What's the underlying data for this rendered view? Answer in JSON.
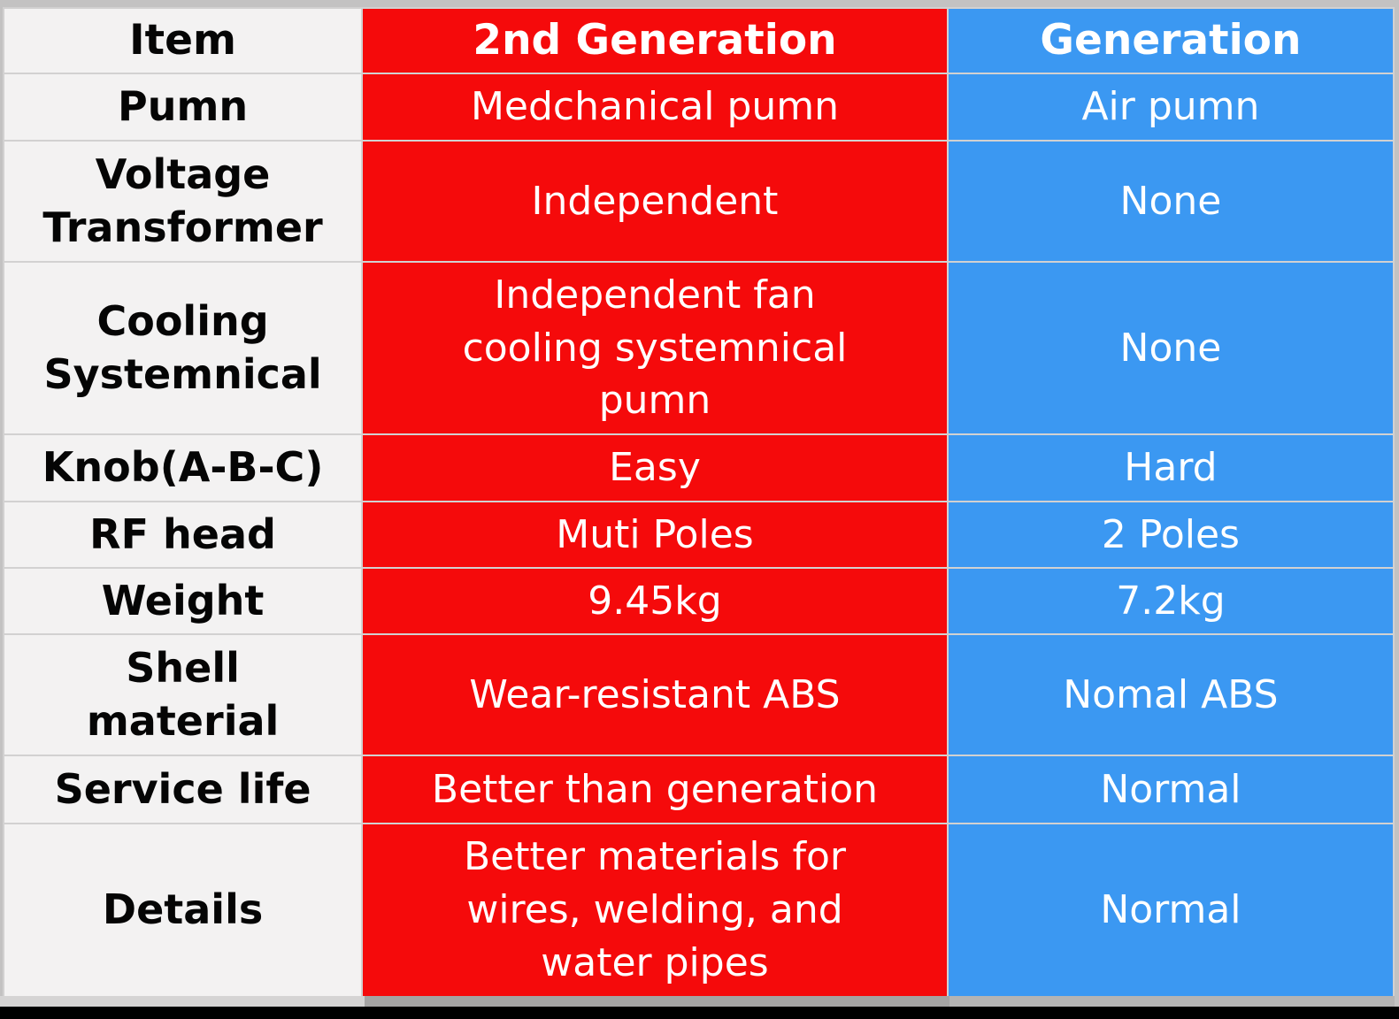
{
  "colors": {
    "red": "#f50a0b",
    "blue": "#3b98f2",
    "label_bg": "#f3f2f2",
    "label_text": "#050505",
    "value_text": "#ffffff",
    "grid": "#d2d1d1",
    "page_bg": "#c3c2c2",
    "letterbox": "#000000",
    "shadow_left": "#d5d4d4",
    "shadow_mid": "#a5a4a4",
    "shadow_right": "#b5b4b4"
  },
  "table": {
    "header": {
      "item": "Item",
      "gen2": "2nd Generation",
      "gen1": "Generation"
    },
    "rows": [
      {
        "item": "Pumn",
        "gen2": "Medchanical pumn",
        "gen1": "Air pumn"
      },
      {
        "item": "Voltage\nTransformer",
        "gen2": "Independent",
        "gen1": "None"
      },
      {
        "item": "Cooling\nSystemnical",
        "gen2": "Independent fan\ncooling systemnical\npumn",
        "gen1": "None"
      },
      {
        "item": "Knob(A-B-C)",
        "gen2": "Easy",
        "gen1": "Hard"
      },
      {
        "item": "RF head",
        "gen2": "Muti Poles",
        "gen1": "2 Poles"
      },
      {
        "item": "Weight",
        "gen2": "9.45kg",
        "gen1": "7.2kg"
      },
      {
        "item": "Shell\nmaterial",
        "gen2": "Wear-resistant ABS",
        "gen1": "Nomal ABS"
      },
      {
        "item": "Service life",
        "gen2": "Better than generation",
        "gen1": "Normal"
      },
      {
        "item": "Details",
        "gen2": "Better materials for\nwires, welding, and\nwater pipes",
        "gen1": "Normal"
      }
    ]
  },
  "chart_data": {
    "type": "table",
    "title": "",
    "columns": [
      "Item",
      "2nd Generation",
      "Generation"
    ],
    "rows": [
      [
        "Pumn",
        "Medchanical pumn",
        "Air pumn"
      ],
      [
        "Voltage Transformer",
        "Independent",
        "None"
      ],
      [
        "Cooling Systemnical",
        "Independent fan cooling systemnical pumn",
        "None"
      ],
      [
        "Knob(A-B-C)",
        "Easy",
        "Hard"
      ],
      [
        "RF head",
        "Muti Poles",
        "2 Poles"
      ],
      [
        "Weight",
        "9.45kg",
        "7.2kg"
      ],
      [
        "Shell material",
        "Wear-resistant ABS",
        "Nomal ABS"
      ],
      [
        "Service life",
        "Better than generation",
        "Normal"
      ],
      [
        "Details",
        "Better materials for wires, welding, and water pipes",
        "Normal"
      ]
    ],
    "layout_hints": {
      "column_accent_colors": [
        "#f3f2f2",
        "#f50a0b",
        "#3b98f2"
      ],
      "grid": true,
      "header_row": true
    }
  }
}
